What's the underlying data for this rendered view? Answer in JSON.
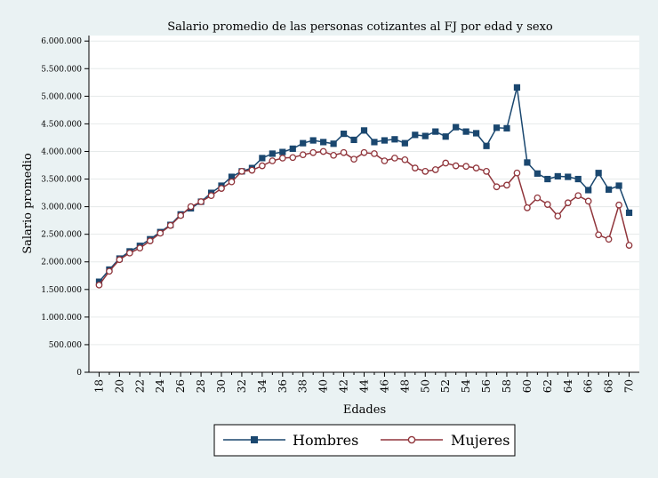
{
  "chart_data": {
    "type": "line",
    "title": "Salario promedio de las personas cotizantes al FJ por edad y sexo",
    "xlabel": "Edades",
    "ylabel": "Salario promedio",
    "x": [
      18,
      19,
      20,
      21,
      22,
      23,
      24,
      25,
      26,
      27,
      28,
      29,
      30,
      31,
      32,
      33,
      34,
      35,
      36,
      37,
      38,
      39,
      40,
      41,
      42,
      43,
      44,
      45,
      46,
      47,
      48,
      49,
      50,
      51,
      52,
      53,
      54,
      55,
      56,
      57,
      58,
      59,
      60,
      61,
      62,
      63,
      64,
      65,
      66,
      67,
      68,
      69,
      70
    ],
    "x_ticks": [
      "18",
      "20",
      "22",
      "24",
      "26",
      "28",
      "30",
      "32",
      "34",
      "36",
      "38",
      "40",
      "42",
      "44",
      "46",
      "48",
      "50",
      "52",
      "54",
      "56",
      "58",
      "60",
      "62",
      "64",
      "66",
      "68",
      "70"
    ],
    "xlim": [
      17,
      71
    ],
    "ylim": [
      0,
      6100000
    ],
    "y_ticks": [
      0,
      500000,
      1000000,
      1500000,
      2000000,
      2500000,
      3000000,
      3500000,
      4000000,
      4500000,
      5000000,
      5500000,
      6000000
    ],
    "y_tick_labels": [
      "0",
      "500.000",
      "1.000.000",
      "1.500.000",
      "2.000.000",
      "2.500.000",
      "3.000.000",
      "3.500.000",
      "4.000.000",
      "4.500.000",
      "5.000.000",
      "5.500.000",
      "6.000.000"
    ],
    "grid": true,
    "legend_position": "bottom",
    "series": [
      {
        "name": "Hombres",
        "color": "#1a476f",
        "marker": "square",
        "values": [
          1640000,
          1860000,
          2060000,
          2190000,
          2290000,
          2410000,
          2540000,
          2670000,
          2860000,
          2970000,
          3090000,
          3250000,
          3380000,
          3540000,
          3640000,
          3700000,
          3880000,
          3960000,
          3990000,
          4050000,
          4150000,
          4200000,
          4170000,
          4140000,
          4320000,
          4210000,
          4380000,
          4170000,
          4200000,
          4220000,
          4150000,
          4300000,
          4280000,
          4360000,
          4270000,
          4440000,
          4360000,
          4330000,
          4100000,
          4430000,
          4420000,
          5160000,
          3800000,
          3600000,
          3500000,
          3550000,
          3540000,
          3500000,
          3300000,
          3610000,
          3310000,
          3380000,
          2890000
        ]
      },
      {
        "name": "Mujeres",
        "color": "#90353b",
        "marker": "hollow-circle",
        "values": [
          1580000,
          1830000,
          2040000,
          2160000,
          2250000,
          2380000,
          2520000,
          2660000,
          2840000,
          3000000,
          3090000,
          3200000,
          3330000,
          3450000,
          3640000,
          3660000,
          3740000,
          3830000,
          3880000,
          3890000,
          3940000,
          3980000,
          4000000,
          3930000,
          3980000,
          3860000,
          3980000,
          3960000,
          3830000,
          3880000,
          3850000,
          3700000,
          3640000,
          3670000,
          3790000,
          3740000,
          3730000,
          3700000,
          3640000,
          3360000,
          3390000,
          3610000,
          2980000,
          3160000,
          3040000,
          2830000,
          3070000,
          3200000,
          3100000,
          2490000,
          2410000,
          3030000,
          2300000
        ]
      }
    ]
  }
}
